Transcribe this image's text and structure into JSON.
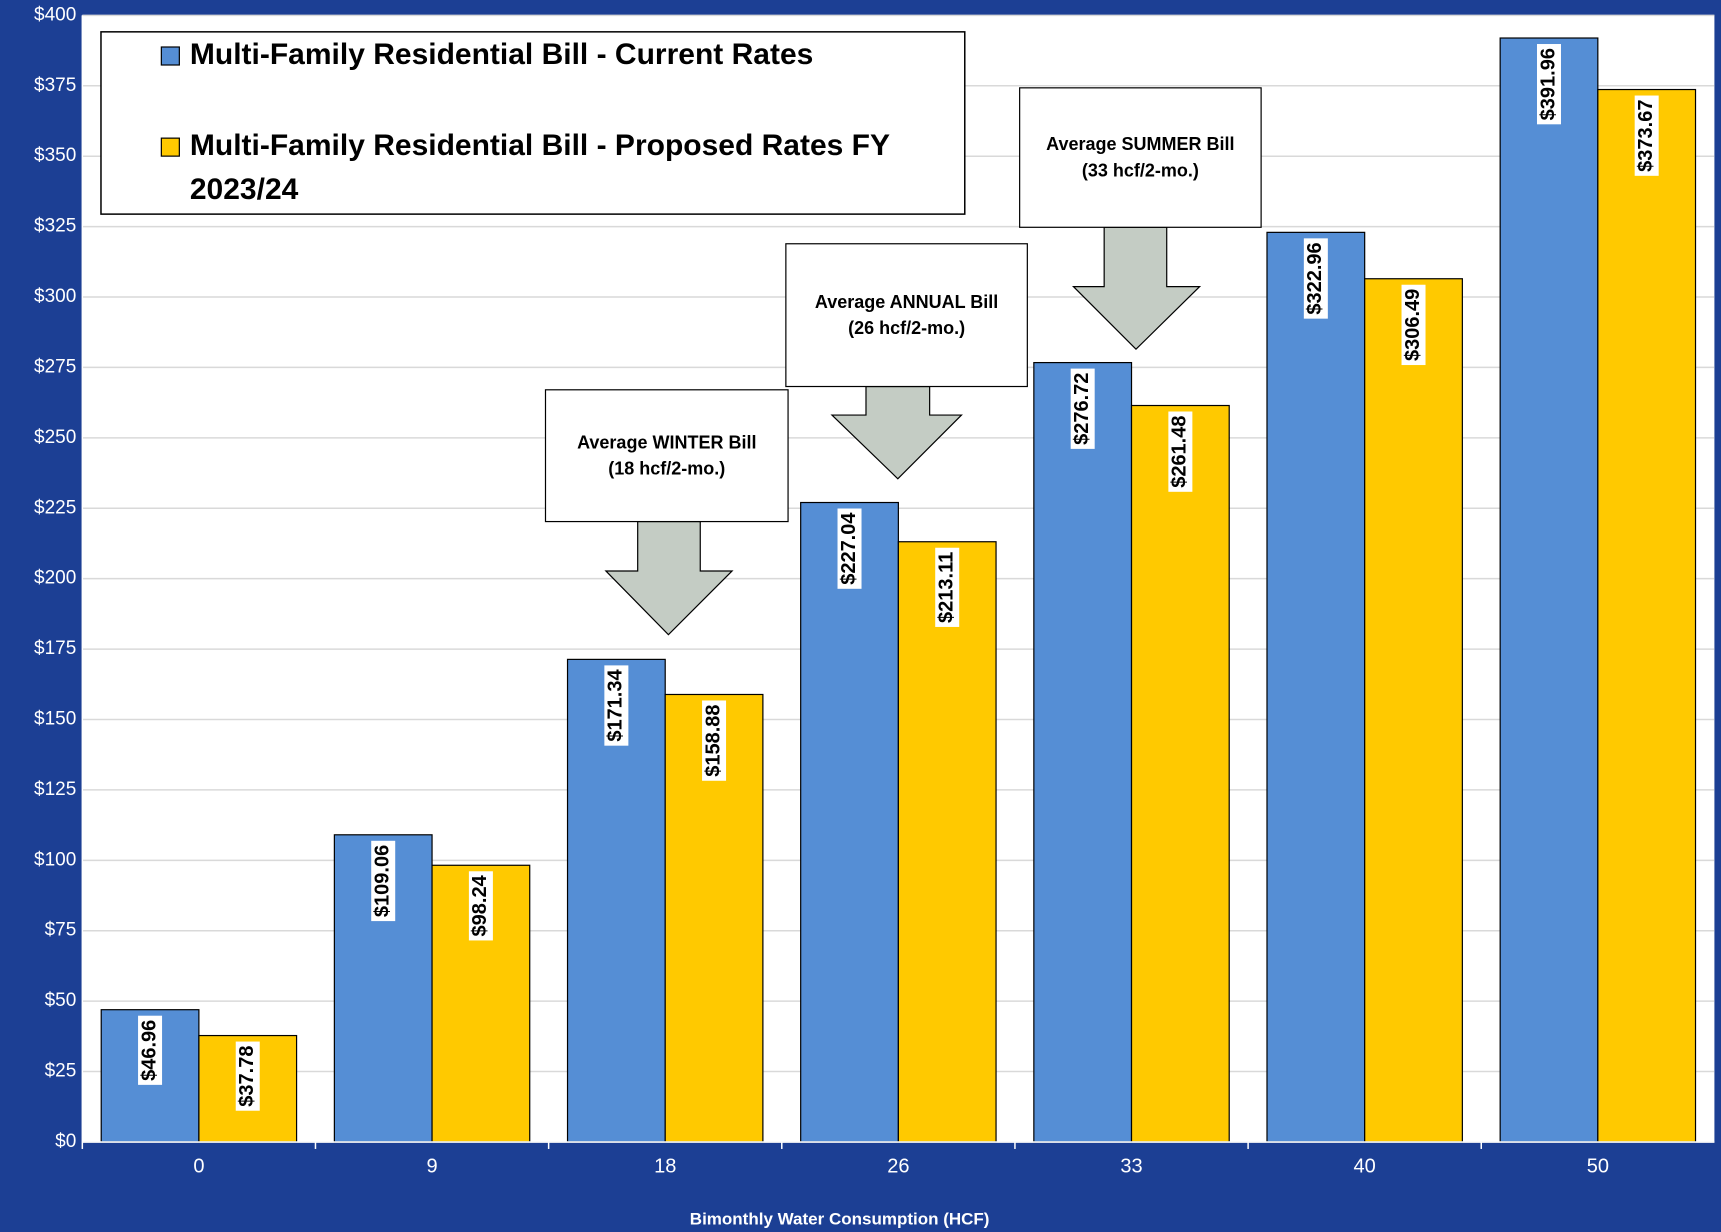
{
  "chart_data": {
    "type": "bar",
    "categories": [
      "0",
      "9",
      "18",
      "26",
      "33",
      "40",
      "50"
    ],
    "x_label": "Bimonthly Water Consumption  (HCF)",
    "series": [
      {
        "name": "Multi-Family Residential Bill - Current Rates",
        "color": "#558ed5",
        "values": [
          46.96,
          109.06,
          171.34,
          227.04,
          276.72,
          322.96,
          391.96
        ],
        "value_labels": [
          "$46.96",
          "$109.06",
          "$171.34",
          "$227.04",
          "$276.72",
          "$322.96",
          "$391.96"
        ]
      },
      {
        "name": "Multi-Family Residential Bill - Proposed Rates FY 2023/24",
        "color": "#ffc900",
        "values": [
          37.78,
          98.24,
          158.88,
          213.11,
          261.48,
          306.49,
          373.67
        ],
        "value_labels": [
          "$37.78",
          "$98.24",
          "$158.88",
          "$213.11",
          "$261.48",
          "$306.49",
          "$373.67"
        ]
      }
    ],
    "ylim": [
      0,
      400
    ],
    "yticks": [
      {
        "value": 0,
        "label": "$0"
      },
      {
        "value": 25,
        "label": "$25"
      },
      {
        "value": 50,
        "label": "$50"
      },
      {
        "value": 75,
        "label": "$75"
      },
      {
        "value": 100,
        "label": "$100"
      },
      {
        "value": 125,
        "label": "$125"
      },
      {
        "value": 150,
        "label": "$150"
      },
      {
        "value": 175,
        "label": "$175"
      },
      {
        "value": 200,
        "label": "$200"
      },
      {
        "value": 225,
        "label": "$225"
      },
      {
        "value": 250,
        "label": "$250"
      },
      {
        "value": 275,
        "label": "$275"
      },
      {
        "value": 300,
        "label": "$300"
      },
      {
        "value": 325,
        "label": "$325"
      },
      {
        "value": 350,
        "label": "$350"
      },
      {
        "value": 375,
        "label": "$375"
      },
      {
        "value": 400,
        "label": "$400"
      }
    ],
    "grid": true,
    "annotations": [
      {
        "lines": [
          "Average WINTER Bill",
          "(18 hcf/2-mo.)"
        ]
      },
      {
        "lines": [
          "Average ANNUAL Bill",
          "(26 hcf/2-mo.)"
        ]
      },
      {
        "lines": [
          "Average SUMMER Bill",
          "(33 hcf/2-mo.)"
        ]
      }
    ]
  }
}
